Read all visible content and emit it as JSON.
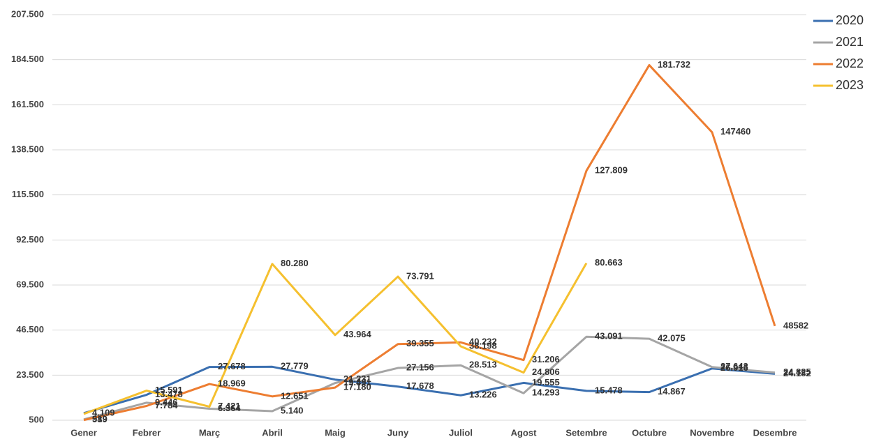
{
  "chart_data": {
    "type": "line",
    "categories": [
      "Gener",
      "Febrer",
      "Març",
      "Abril",
      "Maig",
      "Juny",
      "Juliol",
      "Agost",
      "Setembre",
      "Octubre",
      "Novembre",
      "Desembre"
    ],
    "ylim": [
      500,
      207500
    ],
    "yticks": [
      {
        "value": 500,
        "label": "500"
      },
      {
        "value": 23500,
        "label": "23.500"
      },
      {
        "value": 46500,
        "label": "46.500"
      },
      {
        "value": 69500,
        "label": "69.500"
      },
      {
        "value": 92500,
        "label": "92.500"
      },
      {
        "value": 115500,
        "label": "115.500"
      },
      {
        "value": 138500,
        "label": "138.500"
      },
      {
        "value": 161500,
        "label": "161.500"
      },
      {
        "value": 184500,
        "label": "184.500"
      },
      {
        "value": 207500,
        "label": "207.500"
      }
    ],
    "grid": true,
    "legend": "right",
    "series": [
      {
        "name": "2020",
        "color": "#3a6fb0",
        "values": [
          4109,
          13478,
          27678,
          27779,
          21231,
          17678,
          13226,
          19555,
          15478,
          14867,
          26916,
          24182
        ],
        "value_labels": [
          "4.109",
          "13.478",
          "27.678",
          "27.779",
          "21.231",
          "17.678",
          "13.226",
          "19.555",
          "15.478",
          "14.867",
          "26.916",
          "24.182"
        ]
      },
      {
        "name": "2021",
        "color": "#a5a5a5",
        "values": [
          919,
          9446,
          6364,
          5140,
          19491,
          27156,
          28513,
          14293,
          43091,
          42075,
          27643,
          24825
        ],
        "value_labels": [
          "919",
          "9.446",
          "6.364",
          "5.140",
          "19.491",
          "27.156",
          "28.513",
          "14.293",
          "43.091",
          "42.075",
          "27.643",
          "24.825"
        ]
      },
      {
        "name": "2022",
        "color": "#ed7d31",
        "values": [
          589,
          7784,
          18969,
          12651,
          17180,
          39355,
          40232,
          31206,
          127809,
          181732,
          147460,
          48582
        ],
        "value_labels": [
          "589",
          "7.784",
          "18.969",
          "12.651",
          "17.180",
          "39.355",
          "40.232",
          "31.206",
          "127.809",
          "181.732",
          "147460",
          "48582"
        ]
      },
      {
        "name": "2023",
        "color": "#f5c02f",
        "values": [
          3700,
          15591,
          7421,
          80280,
          43964,
          73791,
          38198,
          24806,
          80663,
          null,
          null,
          null
        ],
        "value_labels": [
          null,
          "15.591",
          "7.421",
          "80.280",
          "43.964",
          "73.791",
          "38.198",
          "24.806",
          "80.663",
          null,
          null,
          null
        ]
      }
    ]
  }
}
